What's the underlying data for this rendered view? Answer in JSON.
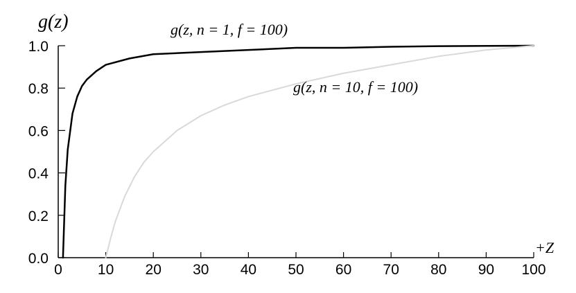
{
  "chart_data": {
    "type": "line",
    "title": "",
    "ylabel": "g(z)",
    "xlabel": "+Z",
    "xlim": [
      0,
      100
    ],
    "ylim": [
      0.0,
      1.0
    ],
    "x_ticks": [
      "0",
      "10",
      "20",
      "30",
      "40",
      "50",
      "60",
      "70",
      "80",
      "90",
      "100"
    ],
    "y_ticks": [
      "0.0",
      "0.2",
      "0.4",
      "0.6",
      "0.8",
      "1.0"
    ],
    "grid": false,
    "legend": "none",
    "series": [
      {
        "name": "g(z, n = 1, f = 100)",
        "color": "#000000",
        "x": [
          1,
          1.5,
          2,
          3,
          4,
          5,
          6,
          8,
          10,
          15,
          20,
          30,
          40,
          50,
          60,
          70,
          80,
          90,
          100
        ],
        "y": [
          0.0,
          0.34,
          0.51,
          0.68,
          0.76,
          0.81,
          0.84,
          0.88,
          0.91,
          0.94,
          0.96,
          0.97,
          0.98,
          0.99,
          0.99,
          0.995,
          0.998,
          0.999,
          1.0
        ]
      },
      {
        "name": "g(z, n = 10, f = 100)",
        "color": "#d9d9d9",
        "x": [
          10,
          11,
          12,
          14,
          16,
          18,
          20,
          25,
          30,
          35,
          40,
          45,
          50,
          60,
          70,
          80,
          90,
          100
        ],
        "y": [
          0.0,
          0.09,
          0.17,
          0.29,
          0.38,
          0.45,
          0.5,
          0.6,
          0.67,
          0.72,
          0.76,
          0.79,
          0.82,
          0.87,
          0.91,
          0.95,
          0.98,
          1.0
        ]
      }
    ]
  }
}
